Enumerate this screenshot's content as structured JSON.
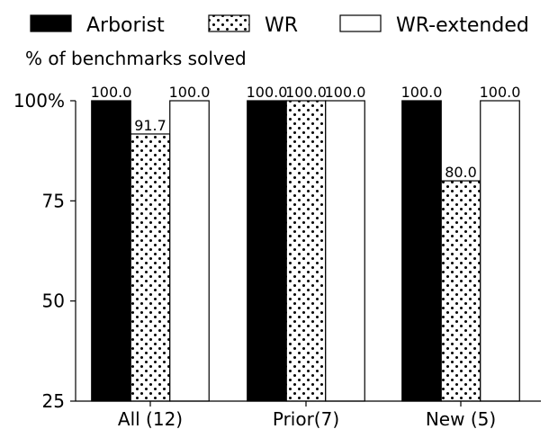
{
  "chart_data": {
    "type": "bar",
    "ylabel": "% of benchmarks solved",
    "categories": [
      "All (12)",
      "Prior(7)",
      "New (5)"
    ],
    "series": [
      {
        "name": "Arborist",
        "values": [
          100.0,
          100.0,
          100.0
        ],
        "fill": "solid-black"
      },
      {
        "name": "WR",
        "values": [
          91.7,
          100.0,
          80.0
        ],
        "fill": "dotted"
      },
      {
        "name": "WR-extended",
        "values": [
          100.0,
          100.0,
          100.0
        ],
        "fill": "white"
      }
    ],
    "value_labels": [
      [
        "100.0",
        "100.0",
        "100.0"
      ],
      [
        "91.7",
        "100.0",
        "80.0"
      ],
      [
        "100.0",
        "100.0",
        "100.0"
      ]
    ],
    "ylim": [
      25,
      100
    ],
    "yticks": [
      25,
      50,
      75,
      100
    ],
    "ytick_labels": [
      "25",
      "50",
      "75",
      "100%"
    ],
    "legend_position": "top",
    "grid": false,
    "colors": {
      "bar_edge": "#000000",
      "solid": "#000000",
      "background": "#ffffff"
    }
  }
}
